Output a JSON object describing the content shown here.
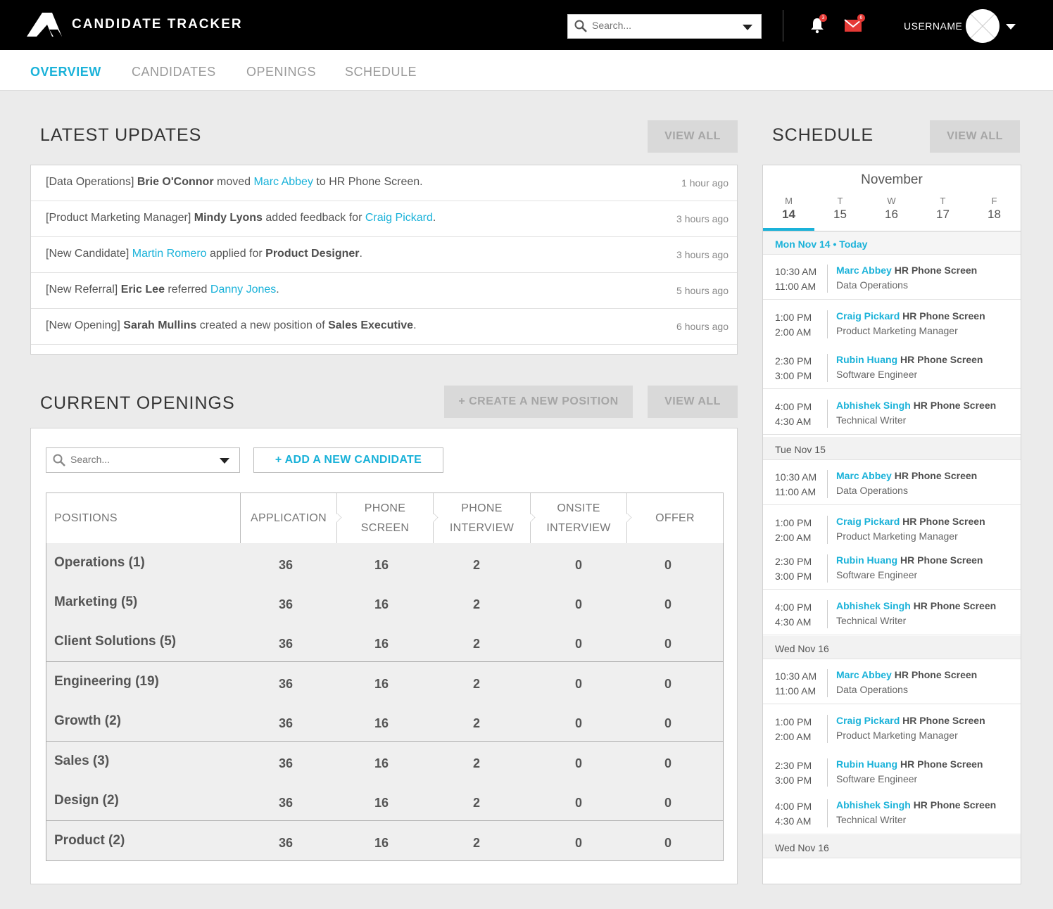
{
  "app": {
    "title": "CANDIDATE TRACKER"
  },
  "header": {
    "search_placeholder": "Search...",
    "notifications_count": "3",
    "messages_count": "6",
    "username": "USERNAME"
  },
  "nav": {
    "tabs": [
      "OVERVIEW",
      "CANDIDATES",
      "OPENINGS",
      "SCHEDULE"
    ],
    "active": "OVERVIEW"
  },
  "latest_updates": {
    "title": "LATEST UPDATES",
    "view_all": "VIEW ALL",
    "items": [
      {
        "parts": [
          {
            "t": "[Data Operations] ",
            "s": "n"
          },
          {
            "t": "Brie O'Connor",
            "s": "b"
          },
          {
            "t": " moved ",
            "s": "n"
          },
          {
            "t": "Marc Abbey",
            "s": "c"
          },
          {
            "t": " to HR Phone Screen.",
            "s": "n"
          }
        ],
        "time": "1 hour ago"
      },
      {
        "parts": [
          {
            "t": "[Product Marketing Manager] ",
            "s": "n"
          },
          {
            "t": "Mindy Lyons",
            "s": "b"
          },
          {
            "t": " added feedback for ",
            "s": "n"
          },
          {
            "t": "Craig Pickard",
            "s": "c"
          },
          {
            "t": ".",
            "s": "n"
          }
        ],
        "time": "3 hours ago"
      },
      {
        "parts": [
          {
            "t": "[New Candidate] ",
            "s": "n"
          },
          {
            "t": "Martin Romero",
            "s": "c"
          },
          {
            "t": " applied for ",
            "s": "n"
          },
          {
            "t": "Product Designer",
            "s": "b"
          },
          {
            "t": ".",
            "s": "n"
          }
        ],
        "time": "3 hours ago"
      },
      {
        "parts": [
          {
            "t": "[New Referral] ",
            "s": "n"
          },
          {
            "t": "Eric Lee",
            "s": "b"
          },
          {
            "t": " referred ",
            "s": "n"
          },
          {
            "t": "Danny Jones",
            "s": "c"
          },
          {
            "t": ".",
            "s": "n"
          }
        ],
        "time": "5 hours ago"
      },
      {
        "parts": [
          {
            "t": "[New Opening] ",
            "s": "n"
          },
          {
            "t": "Sarah Mullins",
            "s": "b"
          },
          {
            "t": " created a new position of ",
            "s": "n"
          },
          {
            "t": "Sales Executive",
            "s": "b"
          },
          {
            "t": ".",
            "s": "n"
          }
        ],
        "time": "6 hours ago"
      }
    ]
  },
  "current_openings": {
    "title": "CURRENT OPENINGS",
    "create_label": "+ CREATE A NEW POSITION",
    "view_all": "VIEW ALL",
    "search_placeholder": "Search...",
    "add_candidate_label": "+ ADD A NEW CANDIDATE",
    "columns": [
      "POSITIONS",
      "APPLICATION",
      "PHONE SCREEN",
      "PHONE INTERVIEW",
      "ONSITE INTERVIEW",
      "OFFER"
    ],
    "rows": [
      {
        "position": "Operations (1)",
        "values": [
          "36",
          "16",
          "2",
          "0",
          "0"
        ]
      },
      {
        "position": "Marketing (5)",
        "values": [
          "36",
          "16",
          "2",
          "0",
          "0"
        ]
      },
      {
        "position": "Client Solutions (5)",
        "values": [
          "36",
          "16",
          "2",
          "0",
          "0"
        ]
      },
      {
        "position": "Engineering (19)",
        "values": [
          "36",
          "16",
          "2",
          "0",
          "0"
        ]
      },
      {
        "position": "Growth (2)",
        "values": [
          "36",
          "16",
          "2",
          "0",
          "0"
        ]
      },
      {
        "position": "Sales (3)",
        "values": [
          "36",
          "16",
          "2",
          "0",
          "0"
        ]
      },
      {
        "position": "Design (2)",
        "values": [
          "36",
          "16",
          "2",
          "0",
          "0"
        ]
      },
      {
        "position": "Product (2)",
        "values": [
          "36",
          "16",
          "2",
          "0",
          "0"
        ]
      }
    ]
  },
  "schedule": {
    "title": "SCHEDULE",
    "view_all": "VIEW ALL",
    "month": "November",
    "days": [
      {
        "letter": "M",
        "num": "14",
        "active": true
      },
      {
        "letter": "T",
        "num": "15",
        "active": false
      },
      {
        "letter": "W",
        "num": "16",
        "active": false
      },
      {
        "letter": "T",
        "num": "17",
        "active": false
      },
      {
        "letter": "F",
        "num": "18",
        "active": false
      }
    ],
    "groups": [
      {
        "label": "Mon Nov 14 • Today",
        "today": true,
        "events": [
          {
            "start": "10:30 AM",
            "end": "11:00 AM",
            "name": "Marc Abbey",
            "type": "HR Phone Screen",
            "role": "Data Operations"
          },
          {
            "start": "1:00 PM",
            "end": "2:00 AM",
            "name": "Craig Pickard",
            "type": "HR Phone Screen",
            "role": "Product Marketing Manager"
          },
          {
            "start": "2:30 PM",
            "end": "3:00 PM",
            "name": "Rubin Huang",
            "type": "HR Phone Screen",
            "role": "Software Engineer"
          },
          {
            "start": "4:00 PM",
            "end": "4:30 AM",
            "name": "Abhishek Singh",
            "type": "HR Phone Screen",
            "role": "Technical Writer"
          }
        ]
      },
      {
        "label": "Tue Nov 15",
        "today": false,
        "events": [
          {
            "start": "10:30 AM",
            "end": "11:00 AM",
            "name": "Marc Abbey",
            "type": "HR Phone Screen",
            "role": "Data Operations"
          },
          {
            "start": "1:00 PM",
            "end": "2:00 AM",
            "name": "Craig Pickard",
            "type": "HR Phone Screen",
            "role": "Product Marketing Manager"
          },
          {
            "start": "2:30 PM",
            "end": "3:00 PM",
            "name": "Rubin Huang",
            "type": "HR Phone Screen",
            "role": "Software Engineer"
          },
          {
            "start": "4:00 PM",
            "end": "4:30 AM",
            "name": "Abhishek Singh",
            "type": "HR Phone Screen",
            "role": "Technical Writer"
          }
        ]
      },
      {
        "label": "Wed Nov 16",
        "today": false,
        "events": [
          {
            "start": "10:30 AM",
            "end": "11:00 AM",
            "name": "Marc Abbey",
            "type": "HR Phone Screen",
            "role": "Data Operations"
          },
          {
            "start": "1:00 PM",
            "end": "2:00 AM",
            "name": "Craig Pickard",
            "type": "HR Phone Screen",
            "role": "Product Marketing Manager"
          },
          {
            "start": "2:30 PM",
            "end": "3:00 PM",
            "name": "Rubin Huang",
            "type": "HR Phone Screen",
            "role": "Software Engineer"
          },
          {
            "start": "4:00 PM",
            "end": "4:30 AM",
            "name": "Abhishek Singh",
            "type": "HR Phone Screen",
            "role": "Technical Writer"
          }
        ]
      },
      {
        "label": "Wed Nov 16",
        "today": false,
        "events": []
      }
    ]
  },
  "colors": {
    "accent": "#1ab2d9",
    "topbar": "#000000",
    "badge": "#e53935"
  },
  "icons": [
    "logo-mark",
    "search-icon",
    "dropdown-caret-icon",
    "bell-icon",
    "mail-icon",
    "avatar-placeholder"
  ]
}
